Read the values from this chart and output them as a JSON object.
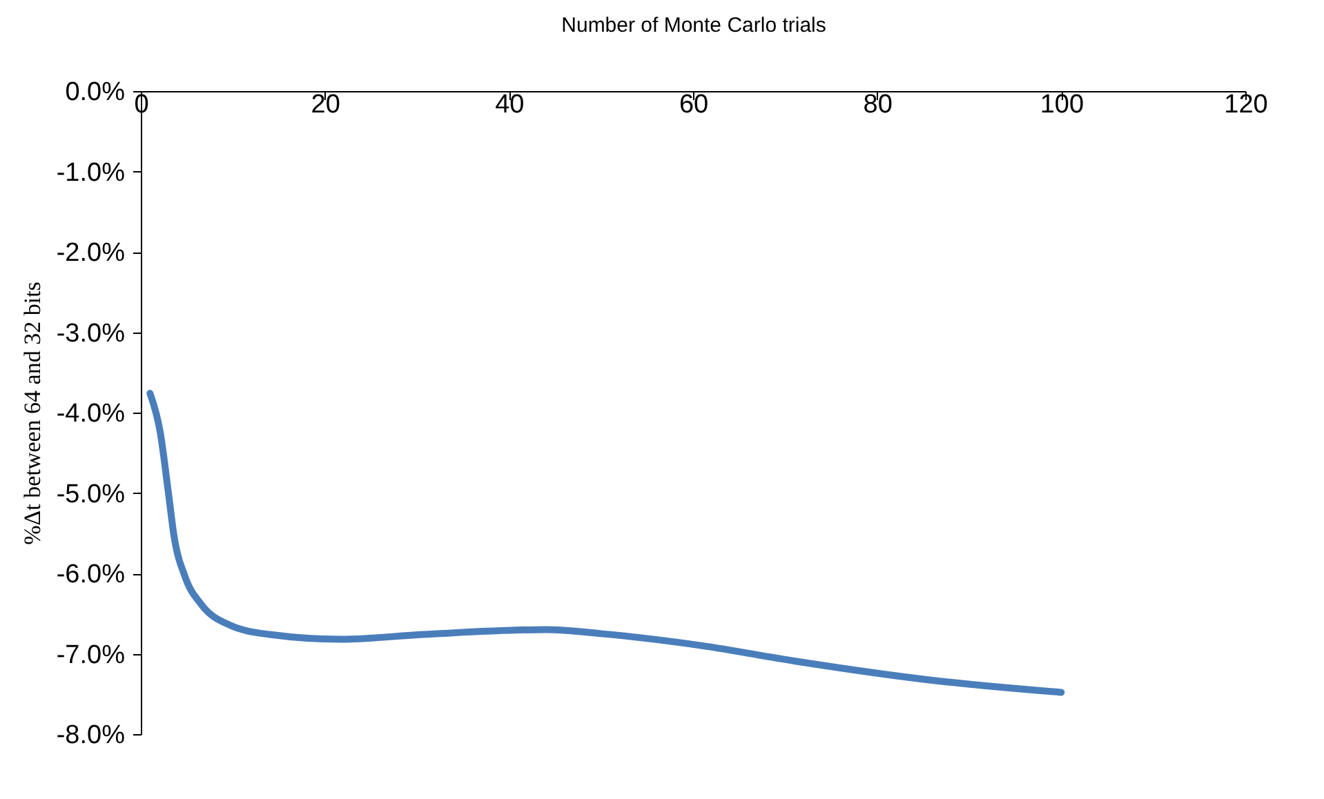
{
  "chart_data": {
    "type": "line",
    "xlabel": "Number of Monte Carlo trials",
    "ylabel": "%Δt between 64 and 32 bits",
    "xlim": [
      0,
      120
    ],
    "xticks": [
      0,
      20,
      40,
      60,
      80,
      100,
      120
    ],
    "ylim": [
      -8,
      0
    ],
    "yticks": [
      {
        "value": 0,
        "label": "0.0%"
      },
      {
        "value": -1,
        "label": "-1.0%"
      },
      {
        "value": -2,
        "label": "-2.0%"
      },
      {
        "value": -3,
        "label": "-3.0%"
      },
      {
        "value": -4,
        "label": "-4.0%"
      },
      {
        "value": -5,
        "label": "-5.0%"
      },
      {
        "value": -6,
        "label": "-6.0%"
      },
      {
        "value": -7,
        "label": "-7.0%"
      },
      {
        "value": -8,
        "label": "-8.0%"
      }
    ],
    "grid": false,
    "marker": "none",
    "line_style": "solid",
    "series": [
      {
        "color": "#4a7ebb",
        "x": [
          1,
          2.1,
          3,
          3.6,
          4.8,
          6.6,
          9.6,
          14,
          21.7,
          30.7,
          44,
          50,
          61,
          71,
          86,
          100
        ],
        "values": [
          -3.76,
          -4.24,
          -5.0,
          -5.53,
          -6.04,
          -6.39,
          -6.64,
          -6.76,
          -6.82,
          -6.76,
          -6.7,
          -6.75,
          -6.9,
          -7.09,
          -7.33,
          -7.48
        ]
      }
    ]
  }
}
